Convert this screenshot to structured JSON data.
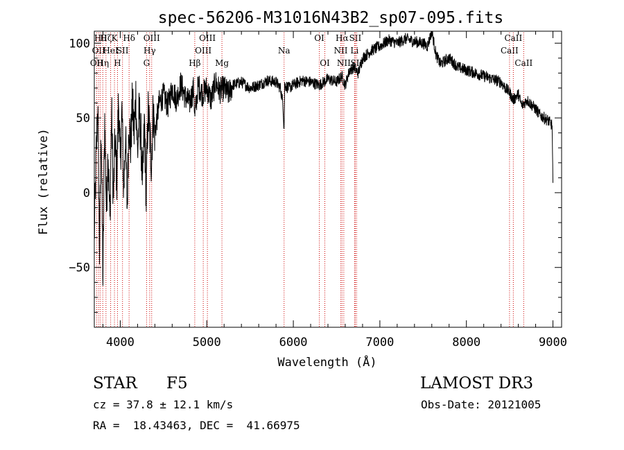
{
  "chart_data": {
    "type": "line",
    "title": "spec-56206-M31016N43B2_sp07-095.fits",
    "xlabel": "Wavelength (Å)",
    "ylabel": "Flux (relative)",
    "xlim": [
      3700,
      9100
    ],
    "ylim": [
      -90,
      108
    ],
    "x_ticks": [
      4000,
      5000,
      6000,
      7000,
      8000,
      9000
    ],
    "x_tick_labels": [
      "4000",
      "5000",
      "6000",
      "7000",
      "8000",
      "9000"
    ],
    "y_ticks": [
      -50,
      0,
      50,
      100
    ],
    "y_tick_labels": [
      "−50",
      "0",
      "50",
      "100"
    ],
    "grid": false,
    "series": [
      {
        "name": "flux",
        "color": "#000000",
        "x": [
          3700,
          3720,
          3740,
          3760,
          3780,
          3800,
          3820,
          3840,
          3860,
          3880,
          3900,
          3920,
          3940,
          3960,
          3980,
          4000,
          4020,
          4040,
          4060,
          4080,
          4100,
          4120,
          4140,
          4160,
          4180,
          4200,
          4220,
          4240,
          4260,
          4280,
          4300,
          4320,
          4340,
          4360,
          4380,
          4400,
          4450,
          4500,
          4550,
          4600,
          4650,
          4700,
          4750,
          4800,
          4850,
          4860,
          4900,
          4950,
          5000,
          5050,
          5100,
          5150,
          5200,
          5250,
          5300,
          5400,
          5500,
          5600,
          5700,
          5800,
          5850,
          5880,
          5893,
          5900,
          5950,
          6000,
          6100,
          6200,
          6300,
          6400,
          6500,
          6560,
          6600,
          6650,
          6700,
          6750,
          6800,
          6900,
          7000,
          7100,
          7200,
          7300,
          7400,
          7500,
          7550,
          7600,
          7650,
          7700,
          7800,
          7900,
          8000,
          8100,
          8200,
          8300,
          8400,
          8450,
          8500,
          8540,
          8600,
          8640,
          8700,
          8800,
          8850,
          8900,
          8950,
          8990,
          9000
        ],
        "y": [
          -30,
          20,
          60,
          -40,
          45,
          -60,
          50,
          -10,
          30,
          -20,
          55,
          -5,
          35,
          10,
          62,
          20,
          55,
          0,
          40,
          -10,
          50,
          30,
          60,
          40,
          65,
          25,
          55,
          35,
          5,
          48,
          -5,
          55,
          40,
          20,
          55,
          40,
          60,
          65,
          58,
          70,
          62,
          73,
          64,
          60,
          70,
          50,
          72,
          66,
          70,
          62,
          74,
          68,
          70,
          66,
          72,
          74,
          70,
          72,
          75,
          74,
          70,
          60,
          42,
          72,
          70,
          72,
          75,
          74,
          72,
          76,
          74,
          78,
          72,
          82,
          84,
          80,
          90,
          95,
          98,
          102,
          100,
          103,
          101,
          100,
          98,
          108,
          92,
          86,
          90,
          84,
          82,
          80,
          78,
          76,
          74,
          70,
          67,
          62,
          66,
          58,
          62,
          56,
          52,
          50,
          48,
          45,
          5
        ]
      }
    ],
    "lines": [
      {
        "wave": 3728,
        "label": "OII",
        "row": 2
      },
      {
        "wave": 3750,
        "label": "OII",
        "row": 1
      },
      {
        "wave": 3770,
        "label": "Hθ",
        "row": 0
      },
      {
        "wave": 3798,
        "label": "Hη",
        "row": 2
      },
      {
        "wave": 3835,
        "label": "Hζ",
        "row": 0
      },
      {
        "wave": 3889,
        "label": "HeI",
        "row": 1
      },
      {
        "wave": 3933,
        "label": "K",
        "row": 0
      },
      {
        "wave": 3968,
        "label": "H",
        "row": 2
      },
      {
        "wave": 4026,
        "label": "SII",
        "row": 1
      },
      {
        "wave": 4102,
        "label": "Hδ",
        "row": 0
      },
      {
        "wave": 4304,
        "label": "G",
        "row": 2
      },
      {
        "wave": 4340,
        "label": "Hγ",
        "row": 1
      },
      {
        "wave": 4363,
        "label": "OIII",
        "row": 0
      },
      {
        "wave": 4861,
        "label": "Hβ",
        "row": 2
      },
      {
        "wave": 4959,
        "label": "OIII",
        "row": 1
      },
      {
        "wave": 5007,
        "label": "OIII",
        "row": 0
      },
      {
        "wave": 5175,
        "label": "Mg",
        "row": 2
      },
      {
        "wave": 5893,
        "label": "Na",
        "row": 1
      },
      {
        "wave": 6300,
        "label": "OI",
        "row": 0
      },
      {
        "wave": 6364,
        "label": "OI",
        "row": 2
      },
      {
        "wave": 6548,
        "label": "NII",
        "row": 1
      },
      {
        "wave": 6563,
        "label": "Hα",
        "row": 0
      },
      {
        "wave": 6583,
        "label": "NII",
        "row": 2
      },
      {
        "wave": 6707,
        "label": "Li",
        "row": 1
      },
      {
        "wave": 6716,
        "label": "SII",
        "row": 0
      },
      {
        "wave": 6731,
        "label": "SII",
        "row": 2
      },
      {
        "wave": 8498,
        "label": "CaII",
        "row": 1
      },
      {
        "wave": 8542,
        "label": "CaII",
        "row": 0
      },
      {
        "wave": 8662,
        "label": "CaII",
        "row": 2
      }
    ]
  },
  "info": {
    "object_class": "STAR",
    "subclass": "F5",
    "survey": "LAMOST DR3",
    "redshift_line": "cz = 37.8 ± 12.1 km/s",
    "obs_date_line": "Obs-Date: 20121005",
    "coords_line": "RA =  18.43463, DEC =  41.66975"
  },
  "colors": {
    "line_marker": "#cc0000",
    "spectrum": "#000000",
    "axis": "#000000"
  }
}
